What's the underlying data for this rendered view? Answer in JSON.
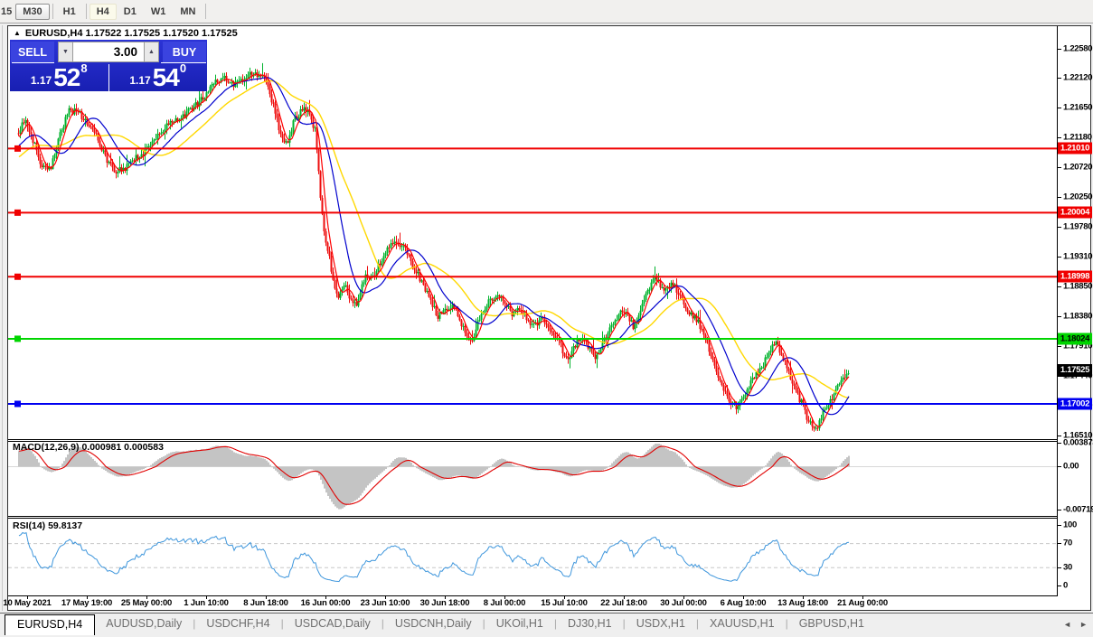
{
  "toolbar": {
    "timeframes": [
      {
        "label": "15",
        "state": "partial"
      },
      {
        "label": "M30",
        "state": "raised"
      },
      {
        "label": "H1",
        "state": "normal"
      },
      {
        "label": "H4",
        "state": "active"
      },
      {
        "label": "D1",
        "state": "normal"
      },
      {
        "label": "W1",
        "state": "normal"
      },
      {
        "label": "MN",
        "state": "normal"
      }
    ]
  },
  "chart": {
    "collapse_icon": "▲",
    "symbol_line": "EURUSD,H4 1.17522 1.17525 1.17520 1.17525",
    "trade_panel": {
      "sell_label": "SELL",
      "buy_label": "BUY",
      "volume": "3.00",
      "spin_down_icon": "▼",
      "spin_up_icon": "▲",
      "sell_price_small": "1.17",
      "sell_price_big": "52",
      "sell_price_sup": "8",
      "buy_price_small": "1.17",
      "buy_price_big": "54",
      "buy_price_sup": "0"
    },
    "current_price": {
      "label": "1.17525",
      "price": 1.17525,
      "bg": "#000000",
      "text_color": "#ffffff"
    }
  },
  "indicators": {
    "macd": {
      "label": "MACD(12,26,9) 0.000981 0.000583",
      "axis": [
        "0.003873",
        "0.00",
        "-0.00719"
      ]
    },
    "rsi": {
      "label": "RSI(14) 59.8137",
      "axis": [
        "100",
        "70",
        "30",
        "0"
      ]
    }
  },
  "tabs": {
    "items": [
      {
        "label": "EURUSD,H4",
        "active": true
      },
      {
        "label": "AUDUSD,Daily",
        "active": false
      },
      {
        "label": "USDCHF,H4",
        "active": false
      },
      {
        "label": "USDCAD,Daily",
        "active": false
      },
      {
        "label": "USDCNH,Daily",
        "active": false
      },
      {
        "label": "UKOil,H1",
        "active": false
      },
      {
        "label": "DJ30,H1",
        "active": false
      },
      {
        "label": "USDX,H1",
        "active": false
      },
      {
        "label": "XAUUSD,H1",
        "active": false
      },
      {
        "label": "GBPUSD,H1",
        "active": false
      }
    ],
    "scroll_left_icon": "◄",
    "scroll_right_icon": "►"
  },
  "chart_data": {
    "type": "candlestick",
    "symbol": "EURUSD",
    "timeframe": "H4",
    "ohlc_display": {
      "open": "1.17522",
      "high": "1.17525",
      "low": "1.17520",
      "close": "1.17525"
    },
    "candle_up_color": "#00b22c",
    "candle_down_color": "#ed0e0e",
    "bar_spacing_px": 2,
    "y_axis": {
      "min": 1.1651,
      "max": 1.2258,
      "labels": [
        "1.22580",
        "1.22120",
        "1.21650",
        "1.21180",
        "1.20720",
        "1.20250",
        "1.19780",
        "1.19310",
        "1.18850",
        "1.18380",
        "1.17910",
        "1.17440",
        "1.16970",
        "1.16510"
      ]
    },
    "x_axis": [
      "10 May 2021",
      "17 May 19:00",
      "25 May 00:00",
      "1 Jun 10:00",
      "8 Jun 18:00",
      "16 Jun 00:00",
      "23 Jun 10:00",
      "30 Jun 18:00",
      "8 Jul 00:00",
      "15 Jul 10:00",
      "22 Jul 18:00",
      "30 Jul 00:00",
      "6 Aug 10:00",
      "13 Aug 18:00",
      "21 Aug 00:00"
    ],
    "levels": [
      {
        "price": 1.2101,
        "label": "1.21010",
        "color": "#f00000",
        "text_color": "#ffffff"
      },
      {
        "price": 1.20004,
        "label": "1.20004",
        "color": "#f00000",
        "text_color": "#ffffff"
      },
      {
        "price": 1.18998,
        "label": "1.18998",
        "color": "#f00000",
        "text_color": "#ffffff"
      },
      {
        "price": 1.18024,
        "label": "1.18024",
        "color": "#00d500",
        "text_color": "#000000"
      },
      {
        "price": 1.17002,
        "label": "1.17002",
        "color": "#0000f0",
        "text_color": "#ffffff"
      }
    ],
    "moving_averages": [
      {
        "name": "slow",
        "color": "#ffd800",
        "window": 36,
        "width": 1.4
      },
      {
        "name": "medium",
        "color": "#0000cd",
        "window": 18,
        "width": 1.2
      },
      {
        "name": "fast",
        "color": "#ff0000",
        "window": 5,
        "width": 1.2
      }
    ],
    "macd": {
      "params": [
        12,
        26,
        9
      ],
      "main_value": 0.000981,
      "signal_value": 0.000583,
      "axis_max": 0.003873,
      "axis_min": -0.00719,
      "hist_color": "#c4c4c4",
      "signal_color": "#e00000"
    },
    "rsi": {
      "period": 14,
      "value": 59.8137,
      "overbought": 70,
      "oversold": 30,
      "line_color": "#3e96dc"
    },
    "price_path_anchors": [
      [
        11,
        1.2125
      ],
      [
        18,
        1.215
      ],
      [
        28,
        1.211
      ],
      [
        38,
        1.2068
      ],
      [
        48,
        1.2075
      ],
      [
        58,
        1.213
      ],
      [
        68,
        1.2162
      ],
      [
        78,
        1.2155
      ],
      [
        88,
        1.214
      ],
      [
        98,
        1.212
      ],
      [
        108,
        1.2085
      ],
      [
        118,
        1.2065
      ],
      [
        128,
        1.207
      ],
      [
        138,
        1.2085
      ],
      [
        150,
        1.2095
      ],
      [
        162,
        1.2115
      ],
      [
        175,
        1.2135
      ],
      [
        188,
        1.215
      ],
      [
        200,
        1.216
      ],
      [
        212,
        1.2175
      ],
      [
        225,
        1.22
      ],
      [
        238,
        1.2212
      ],
      [
        250,
        1.22
      ],
      [
        262,
        1.2215
      ],
      [
        272,
        1.2222
      ],
      [
        282,
        1.2212
      ],
      [
        292,
        1.2175
      ],
      [
        300,
        1.2125
      ],
      [
        308,
        1.211
      ],
      [
        316,
        1.2145
      ],
      [
        326,
        1.2163
      ],
      [
        334,
        1.2152
      ],
      [
        340,
        1.2125
      ],
      [
        344,
        1.204
      ],
      [
        348,
        1.1985
      ],
      [
        352,
        1.195
      ],
      [
        356,
        1.192
      ],
      [
        360,
        1.189
      ],
      [
        366,
        1.1868
      ],
      [
        372,
        1.189
      ],
      [
        378,
        1.1865
      ],
      [
        384,
        1.1855
      ],
      [
        390,
        1.188
      ],
      [
        396,
        1.1905
      ],
      [
        402,
        1.1895
      ],
      [
        410,
        1.192
      ],
      [
        418,
        1.1945
      ],
      [
        426,
        1.1958
      ],
      [
        434,
        1.195
      ],
      [
        442,
        1.1935
      ],
      [
        450,
        1.191
      ],
      [
        458,
        1.189
      ],
      [
        466,
        1.1865
      ],
      [
        474,
        1.1838
      ],
      [
        482,
        1.1845
      ],
      [
        490,
        1.1855
      ],
      [
        498,
        1.184
      ],
      [
        506,
        1.1806
      ],
      [
        512,
        1.1796
      ],
      [
        518,
        1.1825
      ],
      [
        526,
        1.185
      ],
      [
        534,
        1.1866
      ],
      [
        542,
        1.187
      ],
      [
        550,
        1.1855
      ],
      [
        558,
        1.184
      ],
      [
        566,
        1.185
      ],
      [
        574,
        1.183
      ],
      [
        582,
        1.1825
      ],
      [
        590,
        1.1835
      ],
      [
        598,
        1.182
      ],
      [
        606,
        1.1805
      ],
      [
        614,
        1.1782
      ],
      [
        620,
        1.1768
      ],
      [
        626,
        1.179
      ],
      [
        632,
        1.1806
      ],
      [
        638,
        1.1798
      ],
      [
        644,
        1.1786
      ],
      [
        650,
        1.1772
      ],
      [
        656,
        1.179
      ],
      [
        662,
        1.1808
      ],
      [
        668,
        1.1822
      ],
      [
        674,
        1.1838
      ],
      [
        680,
        1.185
      ],
      [
        686,
        1.1832
      ],
      [
        692,
        1.182
      ],
      [
        698,
        1.1845
      ],
      [
        704,
        1.1866
      ],
      [
        710,
        1.1886
      ],
      [
        716,
        1.1898
      ],
      [
        722,
        1.1882
      ],
      [
        728,
        1.1876
      ],
      [
        734,
        1.189
      ],
      [
        740,
        1.1878
      ],
      [
        746,
        1.1862
      ],
      [
        752,
        1.1846
      ],
      [
        758,
        1.1836
      ],
      [
        764,
        1.1826
      ],
      [
        770,
        1.1806
      ],
      [
        776,
        1.178
      ],
      [
        782,
        1.1756
      ],
      [
        788,
        1.1736
      ],
      [
        794,
        1.1716
      ],
      [
        800,
        1.17
      ],
      [
        806,
        1.1696
      ],
      [
        812,
        1.171
      ],
      [
        818,
        1.1726
      ],
      [
        824,
        1.174
      ],
      [
        830,
        1.1752
      ],
      [
        836,
        1.1764
      ],
      [
        842,
        1.1786
      ],
      [
        848,
        1.1796
      ],
      [
        854,
        1.1782
      ],
      [
        860,
        1.176
      ],
      [
        866,
        1.174
      ],
      [
        872,
        1.1718
      ],
      [
        878,
        1.1698
      ],
      [
        884,
        1.1675
      ],
      [
        890,
        1.166
      ],
      [
        896,
        1.1668
      ],
      [
        902,
        1.169
      ],
      [
        908,
        1.1706
      ],
      [
        914,
        1.1716
      ],
      [
        920,
        1.1736
      ],
      [
        926,
        1.1748
      ],
      [
        929,
        1.1752
      ]
    ]
  }
}
